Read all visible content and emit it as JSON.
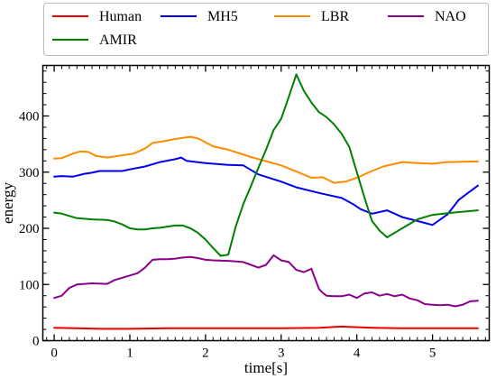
{
  "chart_data": {
    "type": "line",
    "title": "",
    "xlabel": "time[s]",
    "ylabel": "energy",
    "xlim": [
      -0.15,
      5.75
    ],
    "ylim": [
      0,
      490
    ],
    "xticks": [
      0,
      1,
      2,
      3,
      4,
      5
    ],
    "yticks": [
      0,
      100,
      200,
      300,
      400
    ],
    "xtick_labels": [
      "0",
      "1",
      "2",
      "3",
      "4",
      "5"
    ],
    "ytick_labels": [
      "0",
      "100",
      "200",
      "300",
      "400"
    ],
    "grid": false,
    "legend": "top, outside, 4 columns",
    "series": [
      {
        "name": "Human",
        "color": "#ee0000",
        "x": [
          0,
          0.3,
          0.6,
          1.0,
          1.5,
          2.0,
          2.5,
          3.0,
          3.5,
          3.8,
          4.2,
          4.6,
          5.0,
          5.6
        ],
        "y": [
          23,
          22,
          21,
          21,
          22,
          22,
          22,
          22,
          23,
          25,
          23,
          22,
          22,
          22
        ]
      },
      {
        "name": "MH5",
        "color": "#0000ee",
        "x": [
          0,
          0.1,
          0.25,
          0.4,
          0.5,
          0.6,
          0.9,
          1.0,
          1.2,
          1.4,
          1.6,
          1.68,
          1.75,
          2.0,
          2.3,
          2.5,
          2.7,
          3.0,
          3.2,
          3.5,
          3.8,
          3.95,
          4.05,
          4.2,
          4.4,
          4.6,
          4.8,
          5.0,
          5.2,
          5.35,
          5.6
        ],
        "y": [
          292,
          293,
          292,
          297,
          299,
          302,
          302,
          305,
          310,
          318,
          323,
          326,
          320,
          316,
          313,
          312,
          296,
          283,
          273,
          263,
          254,
          243,
          234,
          226,
          232,
          220,
          213,
          206,
          225,
          251,
          276
        ]
      },
      {
        "name": "LBR",
        "color": "#ff8c00",
        "x": [
          0,
          0.1,
          0.25,
          0.35,
          0.45,
          0.55,
          0.7,
          0.9,
          1.05,
          1.2,
          1.3,
          1.45,
          1.6,
          1.8,
          1.9,
          2.1,
          2.3,
          2.6,
          3.0,
          3.2,
          3.4,
          3.55,
          3.7,
          3.85,
          4.0,
          4.2,
          4.35,
          4.6,
          4.8,
          5.0,
          5.2,
          5.6
        ],
        "y": [
          324,
          325,
          333,
          337,
          336,
          329,
          326,
          330,
          333,
          342,
          352,
          355,
          359,
          363,
          360,
          346,
          340,
          327,
          312,
          301,
          290,
          291,
          281,
          283,
          290,
          302,
          310,
          318,
          316,
          315,
          318,
          319
        ]
      },
      {
        "name": "NAO",
        "color": "#8b008b",
        "x": [
          0,
          0.1,
          0.2,
          0.3,
          0.5,
          0.7,
          0.8,
          0.9,
          1.0,
          1.1,
          1.2,
          1.3,
          1.4,
          1.5,
          1.6,
          1.7,
          1.8,
          1.9,
          2.0,
          2.1,
          2.3,
          2.5,
          2.6,
          2.7,
          2.8,
          2.9,
          3.0,
          3.1,
          3.2,
          3.3,
          3.4,
          3.5,
          3.55,
          3.6,
          3.7,
          3.8,
          3.9,
          4.0,
          4.1,
          4.2,
          4.3,
          4.4,
          4.5,
          4.6,
          4.7,
          4.8,
          4.9,
          5.0,
          5.1,
          5.2,
          5.3,
          5.4,
          5.5,
          5.6
        ],
        "y": [
          76,
          80,
          94,
          100,
          102,
          101,
          108,
          112,
          116,
          120,
          130,
          144,
          145,
          145,
          146,
          148,
          149,
          147,
          144,
          143,
          142,
          140,
          135,
          130,
          135,
          152,
          143,
          140,
          126,
          122,
          128,
          92,
          85,
          80,
          79,
          79,
          82,
          76,
          84,
          86,
          80,
          83,
          79,
          82,
          75,
          72,
          65,
          64,
          63,
          64,
          61,
          64,
          70,
          71
        ]
      },
      {
        "name": "AMIR",
        "color": "#008000",
        "x": [
          0,
          0.1,
          0.2,
          0.3,
          0.5,
          0.7,
          0.8,
          0.9,
          1.0,
          1.1,
          1.2,
          1.3,
          1.4,
          1.5,
          1.6,
          1.7,
          1.8,
          1.9,
          2.0,
          2.1,
          2.2,
          2.3,
          2.4,
          2.5,
          2.6,
          2.7,
          2.8,
          2.9,
          3.0,
          3.1,
          3.2,
          3.3,
          3.4,
          3.5,
          3.6,
          3.7,
          3.8,
          3.9,
          4.0,
          4.1,
          4.2,
          4.3,
          4.4,
          4.6,
          4.8,
          5.0,
          5.2,
          5.6
        ],
        "y": [
          228,
          226,
          222,
          218,
          216,
          215,
          212,
          207,
          200,
          198,
          198,
          200,
          201,
          203,
          205,
          205,
          200,
          192,
          180,
          165,
          151,
          153,
          203,
          243,
          275,
          308,
          340,
          375,
          395,
          434,
          474,
          445,
          424,
          407,
          398,
          385,
          368,
          345,
          300,
          255,
          213,
          196,
          184,
          200,
          216,
          224,
          227,
          232
        ]
      }
    ]
  }
}
